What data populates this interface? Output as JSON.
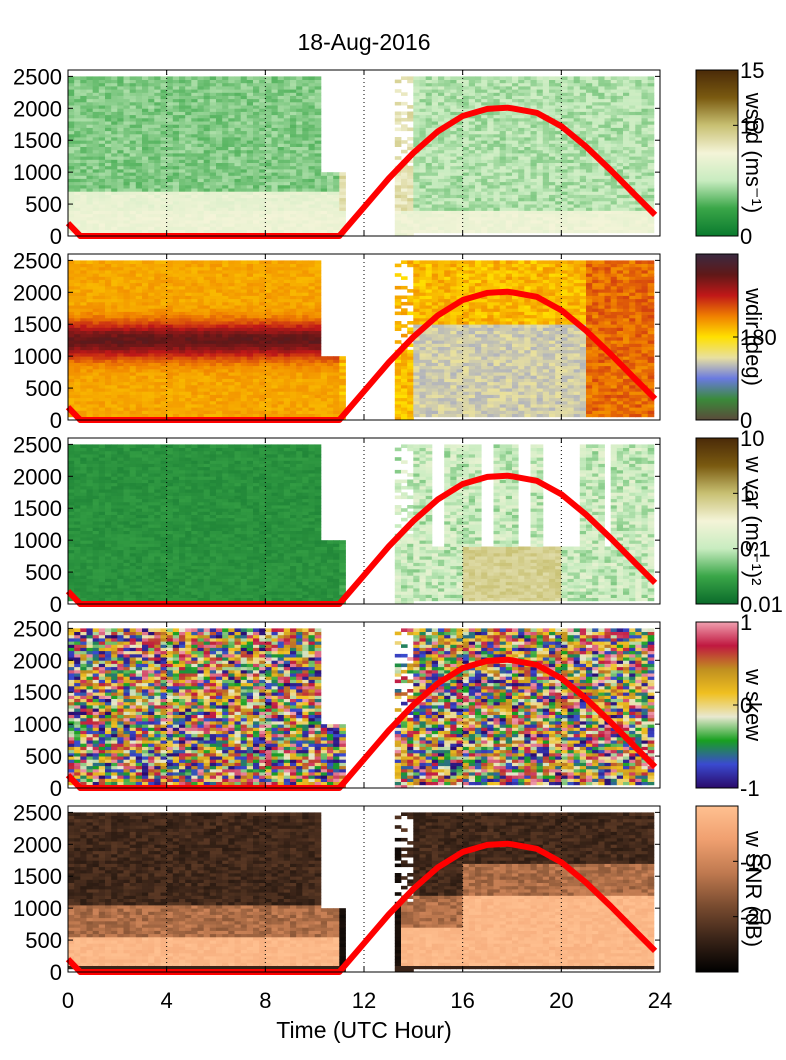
{
  "figure": {
    "title": "18-Aug-2016",
    "xlabel": "Time (UTC Hour)"
  },
  "chart_data": [
    {
      "type": "heatmap",
      "name": "wspd",
      "xlim": [
        0,
        24
      ],
      "ylim": [
        0,
        2600
      ],
      "xticks": [
        0,
        4,
        8,
        12,
        16,
        20,
        24
      ],
      "yticks": [
        0,
        500,
        1000,
        1500,
        2000,
        2500
      ],
      "xtick_labels": [
        "0",
        "4",
        "8",
        "12",
        "16",
        "20",
        "24"
      ],
      "ytick_labels": [
        "0",
        "500",
        "1000",
        "1500",
        "2000",
        "2500"
      ],
      "colorbar": {
        "label": "wspd (ms⁻¹)",
        "ticks": [
          "0",
          "10",
          "15"
        ],
        "range": [
          0,
          15
        ],
        "colors": [
          "#0a7a2e",
          "#3aa648",
          "#c8ecc0",
          "#f4f4d8",
          "#c8c072",
          "#7a5a10",
          "#4a2a08"
        ]
      },
      "overlay": {
        "type": "line",
        "color": "#ff0000",
        "x": [
          0,
          0.5,
          11,
          12,
          13,
          14,
          15,
          16,
          17,
          17.8,
          18,
          19,
          20,
          21,
          22,
          23,
          23.8
        ],
        "y": [
          200,
          0,
          0,
          450,
          900,
          1300,
          1640,
          1880,
          1990,
          2010,
          2000,
          1930,
          1720,
          1400,
          1030,
          640,
          330
        ]
      }
    },
    {
      "type": "heatmap",
      "name": "wdir",
      "xlim": [
        0,
        24
      ],
      "ylim": [
        0,
        2600
      ],
      "xticks": [
        0,
        4,
        8,
        12,
        16,
        20,
        24
      ],
      "yticks": [
        0,
        500,
        1000,
        1500,
        2000,
        2500
      ],
      "xtick_labels": [
        "0",
        "4",
        "8",
        "12",
        "16",
        "20",
        "24"
      ],
      "ytick_labels": [
        "0",
        "500",
        "1000",
        "1500",
        "2000",
        "2500"
      ],
      "colorbar": {
        "label": "wdir (deg)",
        "ticks": [
          "0",
          "180"
        ],
        "range": [
          0,
          360
        ],
        "colors": [
          "#5a4a3a",
          "#3a8a3a",
          "#6a7ae0",
          "#e8e0a0",
          "#ffe000",
          "#f08000",
          "#c01818",
          "#601818",
          "#3a2a40"
        ]
      },
      "overlay": {
        "type": "line",
        "color": "#ff0000",
        "x": [
          0,
          0.5,
          11,
          12,
          13,
          14,
          15,
          16,
          17,
          17.8,
          18,
          19,
          20,
          21,
          22,
          23,
          23.8
        ],
        "y": [
          200,
          0,
          0,
          450,
          900,
          1300,
          1640,
          1880,
          1990,
          2010,
          2000,
          1930,
          1720,
          1400,
          1030,
          640,
          330
        ]
      }
    },
    {
      "type": "heatmap",
      "name": "w var",
      "xlim": [
        0,
        24
      ],
      "ylim": [
        0,
        2600
      ],
      "xticks": [
        0,
        4,
        8,
        12,
        16,
        20,
        24
      ],
      "yticks": [
        0,
        500,
        1000,
        1500,
        2000,
        2500
      ],
      "xtick_labels": [
        "0",
        "4",
        "8",
        "12",
        "16",
        "20",
        "24"
      ],
      "ytick_labels": [
        "0",
        "500",
        "1000",
        "1500",
        "2000",
        "2500"
      ],
      "colorbar": {
        "label": "w var (ms⁻¹)²",
        "ticks": [
          "0.01",
          "0.1",
          "1",
          "10"
        ],
        "range": [
          0.01,
          10
        ],
        "scale": "log",
        "colors": [
          "#0a6a2a",
          "#3aa648",
          "#c8ecc0",
          "#f4f4d8",
          "#c8c072",
          "#7a5a10",
          "#4a2a08"
        ]
      },
      "overlay": {
        "type": "line",
        "color": "#ff0000",
        "x": [
          0,
          0.5,
          11,
          12,
          13,
          14,
          15,
          16,
          17,
          17.8,
          18,
          19,
          20,
          21,
          22,
          23,
          23.8
        ],
        "y": [
          200,
          0,
          0,
          450,
          900,
          1300,
          1640,
          1880,
          1990,
          2010,
          2000,
          1930,
          1720,
          1400,
          1030,
          640,
          330
        ]
      }
    },
    {
      "type": "heatmap",
      "name": "w skew",
      "xlim": [
        0,
        24
      ],
      "ylim": [
        0,
        2600
      ],
      "xticks": [
        0,
        4,
        8,
        12,
        16,
        20,
        24
      ],
      "yticks": [
        0,
        500,
        1000,
        1500,
        2000,
        2500
      ],
      "xtick_labels": [
        "0",
        "4",
        "8",
        "12",
        "16",
        "20",
        "24"
      ],
      "ytick_labels": [
        "0",
        "500",
        "1000",
        "1500",
        "2000",
        "2500"
      ],
      "colorbar": {
        "label": "w skew",
        "ticks": [
          "-1",
          "0",
          "1"
        ],
        "range": [
          -1,
          1
        ],
        "colors": [
          "#2a0a6a",
          "#3a4ad0",
          "#18a020",
          "#e8e8d0",
          "#f0c020",
          "#c09020",
          "#c01840",
          "#f0a0b0"
        ]
      },
      "overlay": {
        "type": "line",
        "color": "#ff0000",
        "x": [
          0,
          0.5,
          11,
          12,
          13,
          14,
          15,
          16,
          17,
          17.8,
          18,
          19,
          20,
          21,
          22,
          23,
          23.8
        ],
        "y": [
          200,
          0,
          0,
          450,
          900,
          1300,
          1640,
          1880,
          1990,
          2010,
          2000,
          1930,
          1720,
          1400,
          1030,
          640,
          330
        ]
      }
    },
    {
      "type": "heatmap",
      "name": "w SNR",
      "xlim": [
        0,
        24
      ],
      "ylim": [
        0,
        2600
      ],
      "xticks": [
        0,
        4,
        8,
        12,
        16,
        20,
        24
      ],
      "yticks": [
        0,
        500,
        1000,
        1500,
        2000,
        2500
      ],
      "xtick_labels": [
        "0",
        "4",
        "8",
        "12",
        "16",
        "20",
        "24"
      ],
      "ytick_labels": [
        "0",
        "500",
        "1000",
        "1500",
        "2000",
        "2500"
      ],
      "colorbar": {
        "label": "w SNR (dB)",
        "ticks": [
          "-20",
          "-10"
        ],
        "range": [
          -30,
          0
        ],
        "colors": [
          "#000000",
          "#3a2418",
          "#7a4c30",
          "#c07a50",
          "#f0a070",
          "#ffc090"
        ]
      },
      "overlay": {
        "type": "line",
        "color": "#ff0000",
        "x": [
          0,
          0.5,
          11,
          12,
          13,
          14,
          15,
          16,
          17,
          17.8,
          18,
          19,
          20,
          21,
          22,
          23,
          23.8
        ],
        "y": [
          200,
          0,
          0,
          450,
          900,
          1300,
          1640,
          1880,
          1990,
          2010,
          2000,
          1930,
          1720,
          1400,
          1030,
          640,
          330
        ]
      }
    }
  ]
}
